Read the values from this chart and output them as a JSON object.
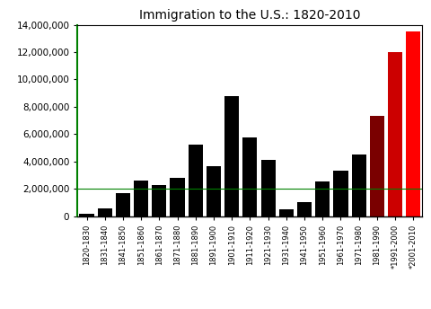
{
  "categories": [
    "1820-1830",
    "1831-1840",
    "1841-1850",
    "1851-1860",
    "1861-1870",
    "1871-1880",
    "1881-1890",
    "1891-1900",
    "1901-1910",
    "1911-1920",
    "1921-1930",
    "1931-1940",
    "1941-1950",
    "1951-1960",
    "1961-1970",
    "1971-1980",
    "1981-1990",
    "*1991-2000",
    "*2001-2010"
  ],
  "values": [
    151000,
    599000,
    1713000,
    2598000,
    2315000,
    2812000,
    5247000,
    3688000,
    8795000,
    5736000,
    4107000,
    528000,
    1035000,
    2515000,
    3322000,
    4493000,
    7338000,
    12000000,
    13500000
  ],
  "bar_colors": [
    "#000000",
    "#000000",
    "#000000",
    "#000000",
    "#000000",
    "#000000",
    "#000000",
    "#000000",
    "#000000",
    "#000000",
    "#000000",
    "#000000",
    "#000000",
    "#000000",
    "#000000",
    "#000000",
    "#7a0000",
    "#cc0000",
    "#ff0000"
  ],
  "title": "Immigration to the U.S.: 1820-2010",
  "title_fontsize": 10,
  "ylim": [
    0,
    14000000
  ],
  "yticks": [
    0,
    2000000,
    4000000,
    6000000,
    8000000,
    10000000,
    12000000,
    14000000
  ],
  "hline_y": 2000000,
  "hline_color": "#008000",
  "left_spine_color": "#008000",
  "background_color": "#ffffff"
}
